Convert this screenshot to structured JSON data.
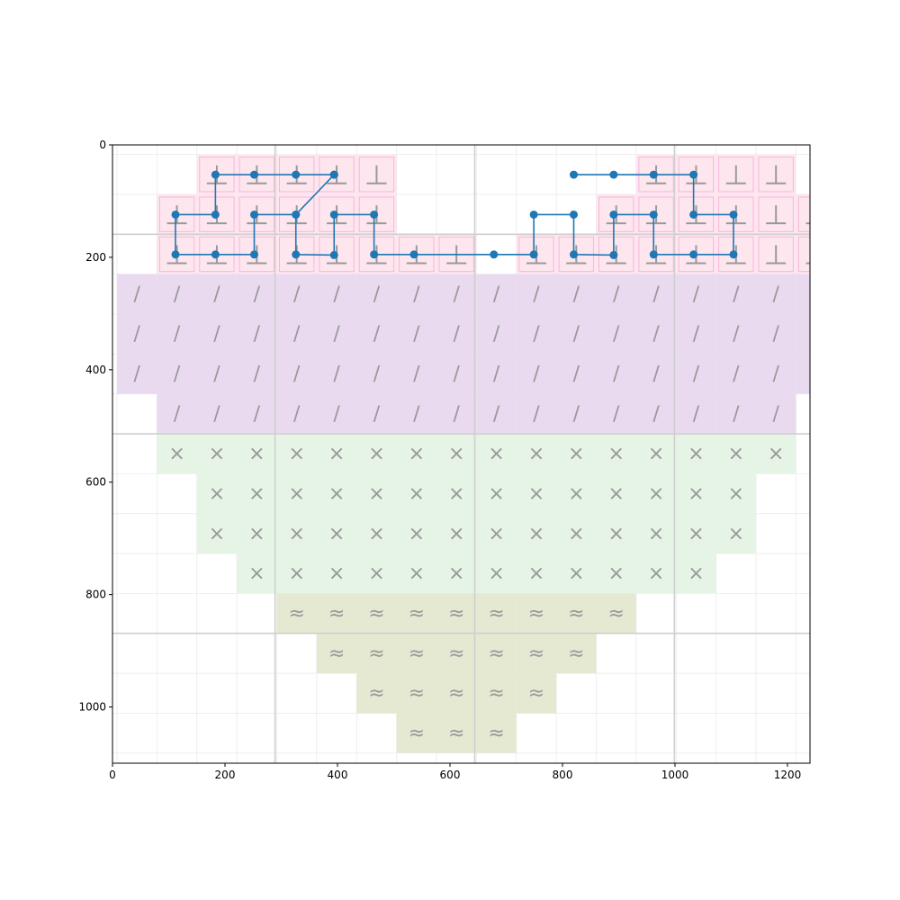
{
  "chart_data": {
    "type": "heatmap",
    "title": "",
    "xlabel": "",
    "ylabel": "",
    "xlim": [
      0,
      1240
    ],
    "ylim": [
      1100,
      0
    ],
    "x_ticks": [
      0,
      200,
      400,
      600,
      800,
      1000,
      1200
    ],
    "y_ticks": [
      0,
      200,
      400,
      600,
      800,
      1000
    ],
    "grid": true,
    "cell_size": 71,
    "cells_origin": [
      8,
      17
    ],
    "major_grid": {
      "x": [
        289,
        644,
        999
      ],
      "y": [
        159,
        514,
        869
      ]
    },
    "categories": [
      {
        "key": "pink",
        "fill": "#fde6ee",
        "border": "#f7b6dc",
        "glyph": "⊥"
      },
      {
        "key": "purple",
        "fill": "#e9daf0",
        "border": "",
        "glyph": "/"
      },
      {
        "key": "green",
        "fill": "#e6f4e6",
        "border": "",
        "glyph": "×"
      },
      {
        "key": "olive",
        "fill": "#e6e9d2",
        "border": "",
        "glyph": "≈"
      }
    ],
    "grid_rows": [
      "..PPPPP......PPPP...",
      ".PPPPPP.....PPPPPP..",
      ".PPPPPPPP.PPPPPPPP..",
      "UUUUUUUUUUUUUUUUUUU.",
      "UUUUUUUUUUUUUUUUUUU.",
      "UUUUUUUUUUUUUUUUUUU.",
      ".UUUUUUUUUUUUUUUU...",
      ".GGGGGGGGGGGGGGGG...",
      "..GGGGGGGGGGGGGG....",
      "..GGGGGGGGGGGGGG....",
      "...GGGGGGGGGGGG.....",
      "....OOOOOOOOO.......",
      ".....OOOOOOO........",
      "......OOOOO.........",
      ".......OOO.........."
    ],
    "row_map": {
      "P": "pink",
      "U": "purple",
      "G": "green",
      "O": "olive"
    },
    "path": {
      "color": "#1f77b4",
      "points": [
        [
          394,
          53
        ],
        [
          326,
          53
        ],
        [
          252,
          53
        ],
        [
          183,
          53
        ],
        [
          183,
          124
        ],
        [
          112,
          124
        ],
        [
          112,
          195
        ],
        [
          183,
          195
        ],
        [
          252,
          195
        ],
        [
          252,
          124
        ],
        [
          326,
          124
        ],
        [
          394,
          53
        ],
        [
          326,
          124
        ],
        [
          326,
          195
        ],
        [
          394,
          196
        ],
        [
          394,
          124
        ],
        [
          465,
          124
        ],
        [
          465,
          195
        ],
        [
          536,
          195
        ],
        [
          678,
          195
        ],
        [
          749,
          195
        ],
        [
          749,
          124
        ],
        [
          820,
          124
        ],
        [
          820,
          195
        ],
        [
          891,
          196
        ],
        [
          891,
          124
        ],
        [
          962,
          124
        ],
        [
          962,
          195
        ],
        [
          1033,
          195
        ],
        [
          1104,
          195
        ],
        [
          1104,
          124
        ],
        [
          1033,
          124
        ],
        [
          1033,
          53
        ],
        [
          962,
          53
        ],
        [
          891,
          53
        ],
        [
          820,
          53
        ]
      ]
    }
  }
}
